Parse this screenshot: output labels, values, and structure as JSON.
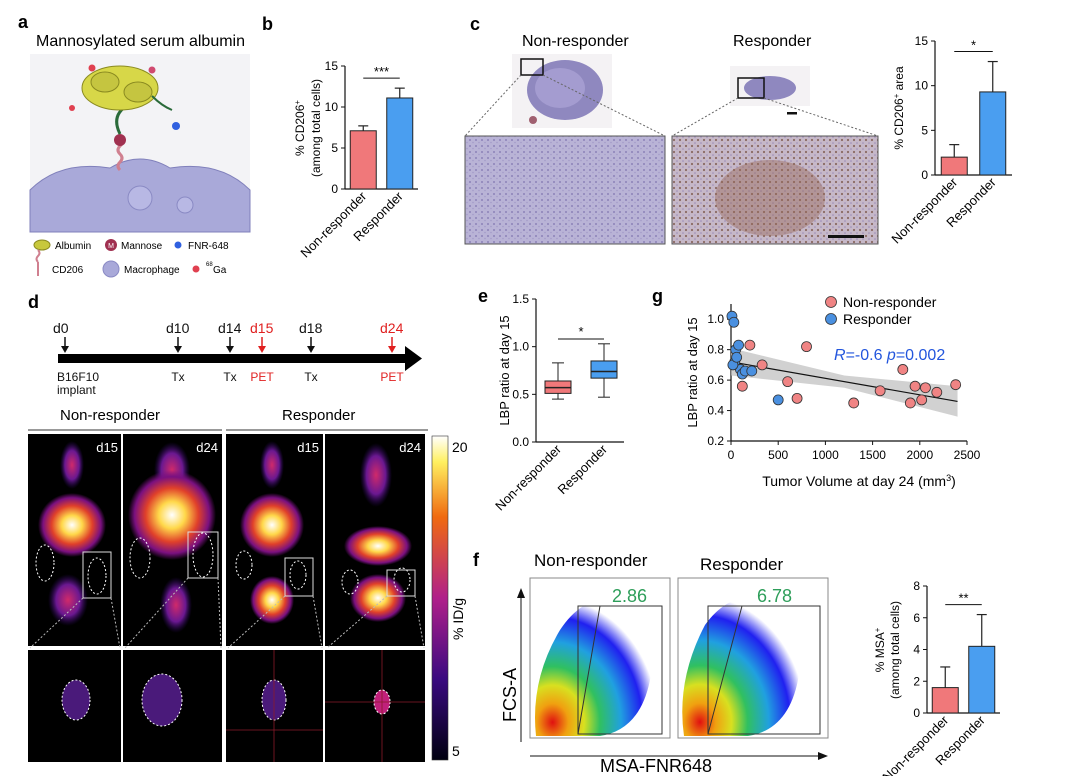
{
  "panels": {
    "a": "a",
    "b": "b",
    "c": "c",
    "d": "d",
    "e": "e",
    "f": "f",
    "g": "g"
  },
  "panel_a": {
    "title": "Mannosylated serum albumin",
    "legend": [
      {
        "label": "Albumin",
        "icon": "albumin-icon",
        "color": "#c8c83c"
      },
      {
        "label": "Mannose",
        "icon": "mannose-icon",
        "color": "#a03050"
      },
      {
        "label": "FNR-648",
        "icon": "fnr-648-icon",
        "color": "#3060e0"
      },
      {
        "label": "CD206",
        "icon": "cd206-icon",
        "color": "#d08090"
      },
      {
        "label": "Macrophage",
        "icon": "macrophage-icon",
        "color": "#a9a9d9"
      },
      {
        "label": "Ga",
        "icon": "ga68-icon",
        "color": "#e04050"
      }
    ],
    "mannose_letter": "M",
    "ga_isotope": "68"
  },
  "panel_c": {
    "titles": [
      "Non-responder",
      "Responder"
    ]
  },
  "panel_d": {
    "timeline": [
      {
        "day": "d0",
        "label": "B16F10",
        "label2": "implant",
        "color": "#111"
      },
      {
        "day": "d10",
        "label": "Tx",
        "color": "#111"
      },
      {
        "day": "d14",
        "label": "Tx",
        "color": "#111"
      },
      {
        "day": "d15",
        "label": "PET",
        "color": "#e02020"
      },
      {
        "day": "d18",
        "label": "Tx",
        "color": "#111"
      },
      {
        "day": "d24",
        "label": "PET",
        "color": "#e02020"
      }
    ],
    "groups": [
      "Non-responder",
      "Responder"
    ],
    "image_labels": [
      "d15",
      "d24",
      "d15",
      "d24"
    ],
    "colorbar": {
      "max": "20",
      "min": "5",
      "label": "% ID/g"
    }
  },
  "panel_f": {
    "titles": [
      "Non-responder",
      "Responder"
    ],
    "gate_values": [
      "2.86",
      "6.78"
    ],
    "x_label": "MSA-FNR648",
    "y_label": "FCS-A",
    "gate_color": "#2e9e5a"
  },
  "chart_data": [
    {
      "id": "b",
      "type": "bar",
      "categories": [
        "Non-responder",
        "Responder"
      ],
      "values": [
        7.1,
        11.1
      ],
      "errors": [
        0.6,
        1.2
      ],
      "colors": [
        "#f0787a",
        "#4a9ef0"
      ],
      "ylabel": "% CD206",
      "ylabel_sup": "+",
      "ylabel2": "(among total cells)",
      "ylim": [
        0,
        15
      ],
      "yticks": [
        0,
        5,
        10,
        15
      ],
      "significance": "***"
    },
    {
      "id": "c",
      "type": "bar",
      "categories": [
        "Non-responder",
        "Responder"
      ],
      "values": [
        2.0,
        9.3
      ],
      "errors": [
        1.4,
        3.4
      ],
      "colors": [
        "#f0787a",
        "#4a9ef0"
      ],
      "ylabel": "% CD206",
      "ylabel_sup": "+",
      "ylabel_tail": " area",
      "ylim": [
        0,
        15
      ],
      "yticks": [
        0,
        5,
        10,
        15
      ],
      "significance": "*"
    },
    {
      "id": "e",
      "type": "box",
      "categories": [
        "Non-responder",
        "Responder"
      ],
      "boxes": [
        {
          "min": 0.45,
          "q1": 0.51,
          "median": 0.57,
          "q3": 0.64,
          "max": 0.83
        },
        {
          "min": 0.47,
          "q1": 0.67,
          "median": 0.74,
          "q3": 0.85,
          "max": 1.03
        }
      ],
      "colors": [
        "#f0787a",
        "#4a9ef0"
      ],
      "ylabel": "LBP ratio at day 15",
      "ylim": [
        0,
        1.5
      ],
      "yticks": [
        "0.0",
        "0.5",
        "1.0",
        "1.5"
      ],
      "significance": "*"
    },
    {
      "id": "g",
      "type": "scatter",
      "series": [
        {
          "name": "Non-responder",
          "color": "#f08484",
          "points": [
            [
              120,
              0.56
            ],
            [
              200,
              0.83
            ],
            [
              330,
              0.7
            ],
            [
              600,
              0.59
            ],
            [
              700,
              0.48
            ],
            [
              800,
              0.82
            ],
            [
              1300,
              0.45
            ],
            [
              1580,
              0.53
            ],
            [
              1820,
              0.67
            ],
            [
              1900,
              0.45
            ],
            [
              1950,
              0.56
            ],
            [
              2020,
              0.47
            ],
            [
              2060,
              0.55
            ],
            [
              2180,
              0.52
            ],
            [
              2380,
              0.57
            ]
          ]
        },
        {
          "name": "Responder",
          "color": "#4a90e0",
          "points": [
            [
              10,
              1.02
            ],
            [
              30,
              0.98
            ],
            [
              40,
              0.72
            ],
            [
              50,
              0.8
            ],
            [
              80,
              0.83
            ],
            [
              100,
              0.67
            ],
            [
              120,
              0.64
            ],
            [
              150,
              0.66
            ],
            [
              220,
              0.66
            ],
            [
              500,
              0.47
            ],
            [
              20,
              0.7
            ],
            [
              60,
              0.75
            ]
          ]
        }
      ],
      "fit": {
        "x0": 0,
        "y0": 0.72,
        "x1": 2400,
        "y1": 0.46
      },
      "annotation": {
        "r_label": "R",
        "r_value": "=-0.6 ",
        "p_label": "p",
        "p_value": "=0.002",
        "color": "#2255dd"
      },
      "xlabel": "Tumor Volume at day 24  (mm",
      "xlabel_sup": "3",
      "xlabel_tail": ")",
      "ylabel": "LBP ratio at day 15",
      "xlim": [
        0,
        2500
      ],
      "ylim": [
        0.2,
        1.1
      ],
      "xticks": [
        0,
        500,
        1000,
        1500,
        2000,
        2500
      ],
      "yticks": [
        "0.2",
        "0.4",
        "0.6",
        "0.8",
        "1.0"
      ]
    },
    {
      "id": "f",
      "type": "bar",
      "categories": [
        "Non-responder",
        "Responder"
      ],
      "values": [
        1.6,
        4.2
      ],
      "errors": [
        1.3,
        2.0
      ],
      "colors": [
        "#f0787a",
        "#4a9ef0"
      ],
      "ylabel": "% MSA",
      "ylabel_sup": "+",
      "ylabel2": "(among total cells)",
      "ylim": [
        0,
        8
      ],
      "yticks": [
        0,
        2,
        4,
        6,
        8
      ],
      "significance": "**"
    }
  ]
}
